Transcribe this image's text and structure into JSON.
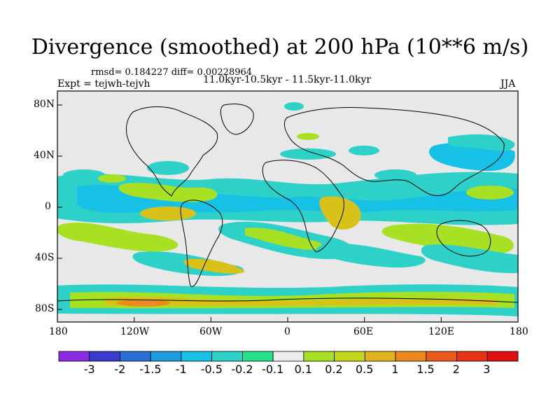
{
  "title": "Divergence (smoothed) at 200 hPa (10**6 m/s)",
  "stats": {
    "rmsd_label": "rmsd= 0.184227 diff= 0.00228964",
    "experiment": "Expt = tejwh-tejvh",
    "period": "11.0kyr-10.5kyr - 11.5kyr-11.0kyr",
    "season": "JJA"
  },
  "axes": {
    "lon_ticks": [
      "180",
      "120W",
      "60W",
      "0",
      "60E",
      "120E",
      "180"
    ],
    "lat_ticks": [
      "80N",
      "40N",
      "0",
      "40S",
      "80S"
    ]
  },
  "colorbar": {
    "labels": [
      "-3",
      "-2",
      "-1.5",
      "-1",
      "-0.5",
      "-0.2",
      "-0.1",
      "0.1",
      "0.2",
      "0.5",
      "1",
      "1.5",
      "2",
      "3"
    ],
    "colors": [
      "#8a2be2",
      "#3a3acd",
      "#2a6fd8",
      "#1e9be0",
      "#17c1e6",
      "#2ed1c8",
      "#28e08a",
      "#ececec",
      "#a8e024",
      "#c4d61a",
      "#e0b420",
      "#ec8a1c",
      "#ea5a1c",
      "#e43418",
      "#e01010"
    ],
    "map_colors": {
      "ocean_bg": "#e8e8e8",
      "neg_light": "#2ed1c8",
      "neg_mid": "#17c1e6",
      "pos_light": "#a8e024",
      "pos_mid": "#d8c21a",
      "pos_strong": "#ec8a1c"
    }
  }
}
